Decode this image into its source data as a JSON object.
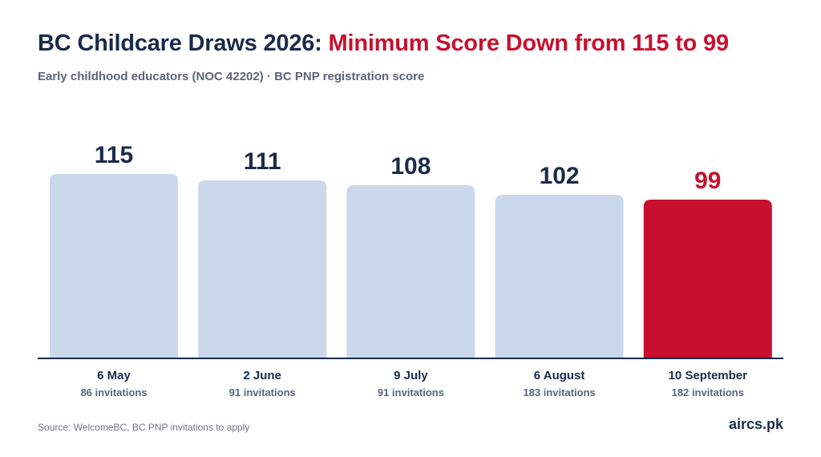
{
  "header": {
    "title_main": "BC Childcare Draws 2026: ",
    "title_accent": "Minimum Score Down from 115 to 99",
    "subtitle": "Early childhood educators (NOC 42202) · BC PNP registration score"
  },
  "chart_data": {
    "type": "bar",
    "categories": [
      "6 May",
      "2 June",
      "9 July",
      "6 August",
      "10 September"
    ],
    "values": [
      115,
      111,
      108,
      102,
      99
    ],
    "sublabels": [
      "86 invitations",
      "91 invitations",
      "91 invitations",
      "183 invitations",
      "182 invitations"
    ],
    "value_labels": [
      "115",
      "111",
      "108",
      "102",
      "99"
    ],
    "highlight_index": 4,
    "grid": false,
    "colors": {
      "bar": "#cbd8ec",
      "highlight": "#c8102e",
      "value_text": "#1b2a4a",
      "highlight_text": "#c8102e",
      "baseline": "#1b2a4a",
      "category_text": "#1b2a4a",
      "sublabel_text": "#5a6578"
    }
  },
  "footer": {
    "source": "Source: WelcomeBC, BC PNP invitations to apply",
    "brand": "aircs.pk"
  }
}
